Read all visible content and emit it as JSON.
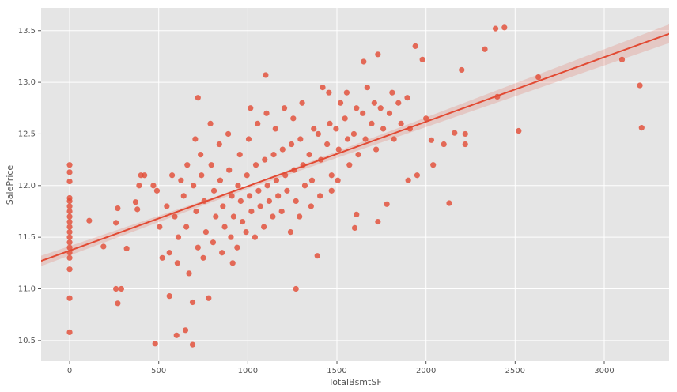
{
  "chart_data": {
    "type": "scatter",
    "x_label": "TotalBsmtSF",
    "y_label": "SalePrice",
    "color": "#e24a33",
    "line_color": "#e24a33",
    "background": "#e5e5e5",
    "grid": true,
    "xlim": [
      -160,
      3364
    ],
    "ylim": [
      10.3,
      13.72
    ],
    "xticks": [
      0,
      500,
      1000,
      1500,
      2000,
      2500,
      3000
    ],
    "yticks": [
      10.5,
      {
        "value": 11,
        "label": "11.0"
      },
      11.5,
      {
        "value": 12,
        "label": "12.0"
      },
      12.5,
      {
        "value": 13,
        "label": "13.0"
      },
      13.5
    ],
    "x": [
      0,
      0,
      0,
      0,
      0,
      0,
      0,
      0,
      0,
      0,
      0,
      0,
      0,
      0,
      0,
      0,
      0,
      0,
      0,
      3100,
      3200,
      3210,
      2630,
      2520,
      2390,
      2440,
      2330,
      2400,
      2220,
      2220,
      2200,
      2160,
      2130,
      2100,
      2040,
      2030,
      1940,
      1980,
      1650,
      1730,
      1100,
      720,
      480,
      690,
      650,
      600,
      1270,
      260,
      290,
      270,
      690,
      780,
      560,
      110,
      190,
      320,
      400,
      420,
      390,
      370,
      380,
      270,
      260,
      470,
      1390,
      1600,
      1610,
      1730,
      1780,
      1900,
      1950,
      1470,
      2000,
      505,
      520,
      490,
      545,
      560,
      575,
      590,
      610,
      625,
      605,
      640,
      655,
      670,
      660,
      695,
      710,
      720,
      705,
      740,
      755,
      765,
      750,
      735,
      795,
      810,
      820,
      805,
      790,
      845,
      860,
      870,
      855,
      840,
      895,
      910,
      920,
      905,
      890,
      915,
      945,
      960,
      970,
      955,
      940,
      995,
      1010,
      1020,
      1005,
      990,
      1015,
      1045,
      1060,
      1070,
      1055,
      1040,
      1095,
      1110,
      1120,
      1105,
      1090,
      1145,
      1160,
      1170,
      1155,
      1140,
      1195,
      1210,
      1220,
      1205,
      1190,
      1245,
      1260,
      1270,
      1255,
      1240,
      1295,
      1310,
      1320,
      1305,
      1290,
      1345,
      1360,
      1370,
      1355,
      1395,
      1410,
      1420,
      1405,
      1445,
      1460,
      1470,
      1455,
      1495,
      1510,
      1520,
      1505,
      1545,
      1560,
      1570,
      1555,
      1595,
      1610,
      1620,
      1645,
      1660,
      1670,
      1695,
      1710,
      1720,
      1745,
      1760,
      1795,
      1810,
      1820,
      1845,
      1860,
      1895,
      1910
    ],
    "values": [
      12.2,
      12.13,
      12.04,
      11.88,
      11.85,
      11.8,
      11.75,
      11.7,
      11.65,
      11.6,
      11.55,
      11.5,
      11.45,
      11.4,
      11.35,
      11.3,
      11.19,
      10.91,
      10.58,
      13.22,
      12.97,
      12.56,
      13.05,
      12.53,
      13.52,
      13.53,
      13.32,
      12.86,
      12.5,
      12.4,
      13.12,
      12.51,
      11.83,
      12.4,
      12.2,
      12.44,
      13.35,
      13.22,
      13.2,
      13.27,
      13.07,
      12.85,
      10.47,
      10.46,
      10.6,
      10.55,
      11.0,
      11.0,
      11.0,
      10.86,
      10.87,
      10.91,
      10.93,
      11.66,
      11.41,
      11.39,
      12.1,
      12.1,
      12.0,
      11.84,
      11.77,
      11.78,
      11.64,
      12.0,
      11.32,
      11.59,
      11.72,
      11.65,
      11.82,
      12.05,
      12.1,
      11.95,
      12.65,
      11.6,
      11.3,
      11.95,
      11.8,
      11.35,
      12.1,
      11.7,
      11.5,
      12.05,
      11.25,
      11.9,
      11.6,
      11.15,
      12.2,
      12.0,
      11.75,
      11.4,
      12.45,
      12.1,
      11.85,
      11.55,
      11.3,
      12.3,
      12.2,
      11.95,
      11.7,
      11.45,
      12.6,
      12.05,
      11.8,
      11.6,
      11.35,
      12.4,
      12.15,
      11.9,
      11.7,
      11.5,
      12.5,
      11.25,
      12.0,
      11.85,
      11.65,
      12.3,
      11.4,
      12.1,
      11.9,
      11.75,
      12.45,
      11.55,
      12.75,
      12.2,
      11.95,
      11.8,
      12.6,
      11.5,
      12.25,
      12.0,
      11.85,
      12.7,
      11.6,
      12.3,
      12.05,
      11.9,
      12.55,
      11.7,
      12.35,
      12.1,
      11.95,
      12.75,
      11.75,
      12.4,
      12.15,
      11.85,
      12.65,
      11.55,
      12.45,
      12.2,
      12.0,
      12.8,
      11.7,
      12.3,
      12.05,
      12.55,
      11.8,
      12.5,
      12.25,
      12.95,
      11.9,
      12.4,
      12.6,
      12.1,
      12.9,
      12.55,
      12.35,
      12.8,
      12.05,
      12.65,
      12.45,
      12.2,
      12.9,
      12.5,
      12.75,
      12.3,
      12.7,
      12.45,
      12.95,
      12.6,
      12.8,
      12.35,
      12.75,
      12.55,
      12.7,
      12.9,
      12.45,
      12.8,
      12.6,
      12.85,
      12.55
    ],
    "regression_line": {
      "x": [
        -160,
        3364
      ],
      "y": [
        11.27,
        13.47
      ]
    },
    "ci_band": {
      "x": [
        -160,
        1000,
        3364
      ],
      "lower": [
        11.22,
        11.97,
        13.38
      ],
      "upper": [
        11.32,
        12.0,
        13.56
      ]
    }
  }
}
